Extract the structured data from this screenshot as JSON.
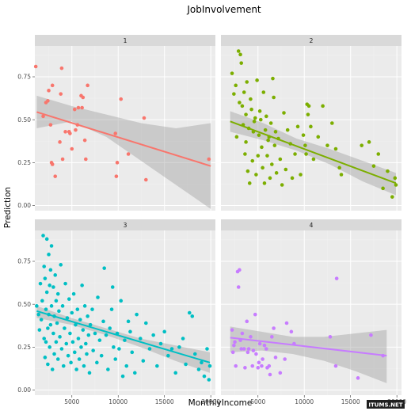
{
  "chart_data": {
    "type": "scatter",
    "title": "JobInvolvement",
    "xlabel": "MonthlyIncome",
    "ylabel": "Prediction",
    "xlim": [
      1000,
      20500
    ],
    "ylim": [
      -0.03,
      0.93
    ],
    "x_ticks": [
      5000,
      10000,
      15000,
      20000
    ],
    "y_ticks": [
      0.0,
      0.25,
      0.5,
      0.75
    ],
    "x_tick_labels": [
      "5000",
      "10000",
      "15000",
      "20000"
    ],
    "y_tick_labels": [
      "0.00",
      "0.25",
      "0.50",
      "0.75"
    ],
    "grid": true,
    "legend": "none",
    "watermark": "ITUMS.NET",
    "panels": [
      {
        "label": "1",
        "color": "#f8766d",
        "fit": {
          "x": [
            1200,
            20000
          ],
          "y": [
            0.545,
            0.23
          ]
        },
        "band": {
          "upper_y": [
            0.64,
            0.58,
            0.53,
            0.48,
            0.45,
            0.48
          ],
          "lower_y": [
            0.45,
            0.49,
            0.4,
            0.26,
            0.12,
            -0.02
          ]
        },
        "points": [
          [
            1100,
            0.81
          ],
          [
            1900,
            0.52
          ],
          [
            2200,
            0.6
          ],
          [
            2400,
            0.61
          ],
          [
            2500,
            0.67
          ],
          [
            2700,
            0.47
          ],
          [
            2800,
            0.25
          ],
          [
            2900,
            0.7
          ],
          [
            2900,
            0.24
          ],
          [
            3200,
            0.17
          ],
          [
            3700,
            0.37
          ],
          [
            3800,
            0.65
          ],
          [
            3900,
            0.8
          ],
          [
            4000,
            0.27
          ],
          [
            4300,
            0.43
          ],
          [
            4700,
            0.43
          ],
          [
            4800,
            0.42
          ],
          [
            5000,
            0.33
          ],
          [
            5300,
            0.56
          ],
          [
            5400,
            0.44
          ],
          [
            5600,
            0.47
          ],
          [
            5700,
            0.57
          ],
          [
            6000,
            0.64
          ],
          [
            6100,
            0.57
          ],
          [
            6200,
            0.63
          ],
          [
            6400,
            0.38
          ],
          [
            6500,
            0.27
          ],
          [
            6700,
            0.7
          ],
          [
            9700,
            0.42
          ],
          [
            9800,
            0.17
          ],
          [
            9900,
            0.25
          ],
          [
            10300,
            0.62
          ],
          [
            11100,
            0.3
          ],
          [
            12800,
            0.51
          ],
          [
            13000,
            0.15
          ],
          [
            19800,
            0.27
          ]
        ]
      },
      {
        "label": "2",
        "color": "#7cae00",
        "fit": {
          "x": [
            2000,
            19900
          ],
          "y": [
            0.49,
            0.13
          ]
        },
        "band": {
          "upper_y": [
            0.55,
            0.48,
            0.39,
            0.33,
            0.26,
            0.19
          ],
          "lower_y": [
            0.43,
            0.38,
            0.32,
            0.24,
            0.14,
            0.06
          ]
        },
        "points": [
          [
            2200,
            0.77
          ],
          [
            2400,
            0.65
          ],
          [
            2600,
            0.7
          ],
          [
            2700,
            0.4
          ],
          [
            2900,
            0.9
          ],
          [
            3000,
            0.6
          ],
          [
            3100,
            0.88
          ],
          [
            3200,
            0.83
          ],
          [
            3300,
            0.58
          ],
          [
            3400,
            0.47
          ],
          [
            3500,
            0.66
          ],
          [
            3600,
            0.3
          ],
          [
            3700,
            0.53
          ],
          [
            3700,
            0.37
          ],
          [
            3800,
            0.72
          ],
          [
            3900,
            0.2
          ],
          [
            4000,
            0.45
          ],
          [
            4100,
            0.13
          ],
          [
            4200,
            0.62
          ],
          [
            4300,
            0.56
          ],
          [
            4400,
            0.26
          ],
          [
            4500,
            0.43
          ],
          [
            4600,
            0.49
          ],
          [
            4700,
            0.51
          ],
          [
            4800,
            0.18
          ],
          [
            4900,
            0.73
          ],
          [
            5000,
            0.29
          ],
          [
            5100,
            0.41
          ],
          [
            5200,
            0.55
          ],
          [
            5300,
            0.5
          ],
          [
            5400,
            0.34
          ],
          [
            5500,
            0.22
          ],
          [
            5600,
            0.66
          ],
          [
            5700,
            0.13
          ],
          [
            5800,
            0.44
          ],
          [
            5900,
            0.52
          ],
          [
            6000,
            0.29
          ],
          [
            6100,
            0.38
          ],
          [
            6200,
            0.4
          ],
          [
            6300,
            0.16
          ],
          [
            6400,
            0.48
          ],
          [
            6500,
            0.24
          ],
          [
            6600,
            0.74
          ],
          [
            6700,
            0.63
          ],
          [
            6800,
            0.35
          ],
          [
            6900,
            0.43
          ],
          [
            7000,
            0.19
          ],
          [
            7200,
            0.39
          ],
          [
            7400,
            0.27
          ],
          [
            7600,
            0.12
          ],
          [
            7800,
            0.54
          ],
          [
            8000,
            0.21
          ],
          [
            8200,
            0.44
          ],
          [
            8500,
            0.36
          ],
          [
            8700,
            0.16
          ],
          [
            9000,
            0.3
          ],
          [
            9300,
            0.46
          ],
          [
            9600,
            0.18
          ],
          [
            9900,
            0.41
          ],
          [
            10100,
            0.35
          ],
          [
            10200,
            0.3
          ],
          [
            10300,
            0.59
          ],
          [
            10400,
            0.53
          ],
          [
            10500,
            0.58
          ],
          [
            10700,
            0.46
          ],
          [
            11000,
            0.27
          ],
          [
            11500,
            0.4
          ],
          [
            12000,
            0.58
          ],
          [
            12500,
            0.35
          ],
          [
            13000,
            0.48
          ],
          [
            13400,
            0.33
          ],
          [
            13800,
            0.22
          ],
          [
            14000,
            0.18
          ],
          [
            16200,
            0.35
          ],
          [
            17000,
            0.37
          ],
          [
            17500,
            0.23
          ],
          [
            18000,
            0.3
          ],
          [
            18500,
            0.1
          ],
          [
            19000,
            0.2
          ],
          [
            19500,
            0.05
          ],
          [
            19800,
            0.16
          ],
          [
            19900,
            0.12
          ]
        ]
      },
      {
        "label": "3",
        "color": "#00bfc4",
        "fit": {
          "x": [
            1200,
            19900
          ],
          "y": [
            0.46,
            0.16
          ]
        },
        "band": {
          "upper_y": [
            0.49,
            0.42,
            0.36,
            0.3,
            0.26,
            0.22
          ],
          "lower_y": [
            0.42,
            0.38,
            0.32,
            0.25,
            0.17,
            0.1
          ]
        },
        "points": [
          [
            1200,
            0.49
          ],
          [
            1400,
            0.44
          ],
          [
            1500,
            0.35
          ],
          [
            1600,
            0.62
          ],
          [
            1700,
            0.41
          ],
          [
            1800,
            0.52
          ],
          [
            1900,
            0.9
          ],
          [
            2000,
            0.72
          ],
          [
            2000,
            0.3
          ],
          [
            2100,
            0.65
          ],
          [
            2100,
            0.19
          ],
          [
            2200,
            0.47
          ],
          [
            2200,
            0.28
          ],
          [
            2300,
            0.88
          ],
          [
            2300,
            0.57
          ],
          [
            2400,
            0.36
          ],
          [
            2400,
            0.15
          ],
          [
            2500,
            0.79
          ],
          [
            2500,
            0.44
          ],
          [
            2600,
            0.61
          ],
          [
            2600,
            0.25
          ],
          [
            2700,
            0.7
          ],
          [
            2700,
            0.38
          ],
          [
            2800,
            0.84
          ],
          [
            2800,
            0.49
          ],
          [
            2900,
            0.12
          ],
          [
            3000,
            0.6
          ],
          [
            3000,
            0.33
          ],
          [
            3100,
            0.43
          ],
          [
            3100,
            0.21
          ],
          [
            3200,
            0.67
          ],
          [
            3300,
            0.52
          ],
          [
            3300,
            0.28
          ],
          [
            3400,
            0.39
          ],
          [
            3500,
            0.18
          ],
          [
            3500,
            0.56
          ],
          [
            3600,
            0.46
          ],
          [
            3700,
            0.31
          ],
          [
            3800,
            0.73
          ],
          [
            3900,
            0.24
          ],
          [
            4000,
            0.49
          ],
          [
            4100,
            0.14
          ],
          [
            4200,
            0.36
          ],
          [
            4300,
            0.62
          ],
          [
            4400,
            0.27
          ],
          [
            4500,
            0.42
          ],
          [
            4600,
            0.2
          ],
          [
            4700,
            0.53
          ],
          [
            4800,
            0.33
          ],
          [
            4900,
            0.16
          ],
          [
            5000,
            0.45
          ],
          [
            5100,
            0.28
          ],
          [
            5200,
            0.56
          ],
          [
            5300,
            0.22
          ],
          [
            5400,
            0.38
          ],
          [
            5500,
            0.12
          ],
          [
            5600,
            0.47
          ],
          [
            5700,
            0.3
          ],
          [
            5800,
            0.18
          ],
          [
            5900,
            0.41
          ],
          [
            6000,
            0.25
          ],
          [
            6100,
            0.61
          ],
          [
            6200,
            0.35
          ],
          [
            6300,
            0.14
          ],
          [
            6400,
            0.49
          ],
          [
            6500,
            0.27
          ],
          [
            6600,
            0.21
          ],
          [
            6700,
            0.43
          ],
          [
            6800,
            0.32
          ],
          [
            6900,
            0.1
          ],
          [
            7000,
            0.38
          ],
          [
            7200,
            0.47
          ],
          [
            7300,
            0.23
          ],
          [
            7500,
            0.33
          ],
          [
            7700,
            0.16
          ],
          [
            7800,
            0.54
          ],
          [
            8000,
            0.29
          ],
          [
            8200,
            0.2
          ],
          [
            8400,
            0.4
          ],
          [
            8500,
            0.71
          ],
          [
            8700,
            0.32
          ],
          [
            8900,
            0.12
          ],
          [
            9100,
            0.36
          ],
          [
            9300,
            0.47
          ],
          [
            9400,
            0.6
          ],
          [
            9500,
            0.25
          ],
          [
            9700,
            0.18
          ],
          [
            9900,
            0.33
          ],
          [
            10100,
            0.24
          ],
          [
            10300,
            0.52
          ],
          [
            10500,
            0.08
          ],
          [
            10700,
            0.29
          ],
          [
            10900,
            0.14
          ],
          [
            11100,
            0.4
          ],
          [
            11300,
            0.34
          ],
          [
            11500,
            0.22
          ],
          [
            11800,
            0.1
          ],
          [
            12000,
            0.44
          ],
          [
            12400,
            0.3
          ],
          [
            12700,
            0.17
          ],
          [
            13000,
            0.39
          ],
          [
            13400,
            0.24
          ],
          [
            13800,
            0.32
          ],
          [
            14200,
            0.14
          ],
          [
            14600,
            0.27
          ],
          [
            15000,
            0.34
          ],
          [
            15400,
            0.2
          ],
          [
            15800,
            0.24
          ],
          [
            16200,
            0.1
          ],
          [
            16600,
            0.25
          ],
          [
            17000,
            0.3
          ],
          [
            17300,
            0.15
          ],
          [
            17700,
            0.45
          ],
          [
            18000,
            0.43
          ],
          [
            18300,
            0.21
          ],
          [
            18700,
            0.12
          ],
          [
            19000,
            0.16
          ],
          [
            19300,
            0.08
          ],
          [
            19600,
            0.24
          ],
          [
            19800,
            0.06
          ],
          [
            19900,
            0.14
          ]
        ]
      },
      {
        "label": "4",
        "color": "#c77cff",
        "fit": {
          "x": [
            2000,
            18900
          ],
          "y": [
            0.305,
            0.2
          ]
        },
        "band": {
          "upper_y": [
            0.37,
            0.34,
            0.31,
            0.31,
            0.33,
            0.35
          ],
          "lower_y": [
            0.22,
            0.23,
            0.21,
            0.17,
            0.11,
            0.04
          ]
        },
        "points": [
          [
            2200,
            0.35
          ],
          [
            2300,
            0.22
          ],
          [
            2400,
            0.26
          ],
          [
            2500,
            0.28
          ],
          [
            2600,
            0.14
          ],
          [
            2800,
            0.69
          ],
          [
            2900,
            0.6
          ],
          [
            3000,
            0.7
          ],
          [
            3100,
            0.29
          ],
          [
            3200,
            0.24
          ],
          [
            3300,
            0.33
          ],
          [
            3500,
            0.24
          ],
          [
            3600,
            0.13
          ],
          [
            3800,
            0.4
          ],
          [
            3900,
            0.22
          ],
          [
            4000,
            0.24
          ],
          [
            4200,
            0.31
          ],
          [
            4400,
            0.14
          ],
          [
            4500,
            0.23
          ],
          [
            4700,
            0.44
          ],
          [
            4800,
            0.21
          ],
          [
            5000,
            0.13
          ],
          [
            5100,
            0.16
          ],
          [
            5200,
            0.27
          ],
          [
            5400,
            0.14
          ],
          [
            5500,
            0.18
          ],
          [
            5700,
            0.26
          ],
          [
            5900,
            0.24
          ],
          [
            6000,
            0.13
          ],
          [
            6200,
            0.14
          ],
          [
            6300,
            0.09
          ],
          [
            6500,
            0.31
          ],
          [
            6700,
            0.36
          ],
          [
            6900,
            0.19
          ],
          [
            7400,
            0.1
          ],
          [
            7900,
            0.18
          ],
          [
            8100,
            0.39
          ],
          [
            8600,
            0.34
          ],
          [
            8900,
            0.27
          ],
          [
            12800,
            0.31
          ],
          [
            13400,
            0.14
          ],
          [
            13500,
            0.65
          ],
          [
            15800,
            0.07
          ],
          [
            17200,
            0.32
          ],
          [
            18500,
            0.2
          ]
        ]
      }
    ]
  }
}
